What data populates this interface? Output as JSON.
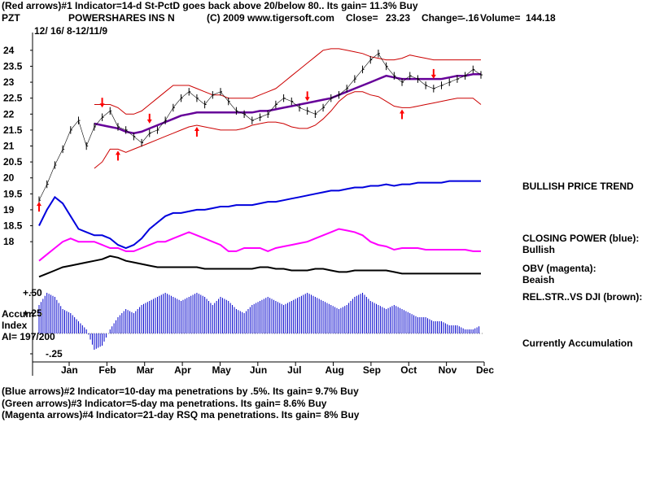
{
  "header": {
    "line1": "(Red arrows)#1 Indicator=14-d St-PctD goes back above 20/below 80.. Its gain= 11.3% Buy",
    "symbol": "PZT",
    "name": "POWERSHARES INS N",
    "copyright": "(C) 2009 www.tigersoft.com",
    "close_label": "Close=",
    "close_value": "23.23",
    "change_label": "Change=",
    "change_value": "-.16",
    "volume_label": "Volume=",
    "volume_value": "144.18",
    "date_range": "12/ 16/ 8-12/11/9"
  },
  "right_labels": {
    "trend": "BULLISH PRICE TREND",
    "closing_power_1": "CLOSING POWER (blue):",
    "closing_power_2": "Bullish",
    "obv_1": "OBV (magenta):",
    "obv_2": "Beaish",
    "relstr": "REL.STR..VS DJI (brown):",
    "accum": "Currently Accumulation"
  },
  "accum_panel": {
    "title_1": "Accum",
    "title_2": "Index",
    "ai": "AI= 197/200",
    "tick_p50": "+.50",
    "tick_p25": "+.25",
    "tick_m25": "-.25"
  },
  "footer": {
    "line2": "(Blue arrows)#2 Indicator=10-day ma penetrations by .5%. Its gain= 9.7% Buy",
    "line3": "(Green arrows)#3 Indicator=5-day ma penetrations. Its gain= 8.6% Buy",
    "line4": "(Magenta arrows)#4 Indicator=21-day RSQ ma penetrations. Its gain= 8% Buy"
  },
  "colors": {
    "price": "#000000",
    "bands": "#cc0000",
    "ma": "#660099",
    "closing_power": "#0000dd",
    "obv": "#ff00ff",
    "rel_str": "#000000",
    "accum_bars": "#0000cc",
    "arrows": "#ff0000"
  },
  "chart_data": {
    "type": "line",
    "y_ticks": [
      "24",
      "23.5",
      "23",
      "22.5",
      "22",
      "21.5",
      "21",
      "20.5",
      "20",
      "19.5",
      "19",
      "18.5",
      "18"
    ],
    "ylim": [
      17.8,
      24.2
    ],
    "months": [
      "Jan",
      "Feb",
      "Mar",
      "Apr",
      "May",
      "Jun",
      "Jul",
      "Aug",
      "Sep",
      "Oct",
      "Nov",
      "Dec"
    ],
    "price": [
      19.3,
      19.8,
      20.4,
      20.9,
      21.5,
      21.8,
      21.0,
      21.6,
      21.9,
      22.1,
      21.6,
      21.5,
      21.3,
      21.1,
      21.4,
      21.5,
      21.8,
      22.2,
      22.5,
      22.7,
      22.5,
      22.3,
      22.6,
      22.7,
      22.4,
      22.1,
      22.0,
      21.8,
      21.9,
      22.0,
      22.3,
      22.5,
      22.4,
      22.2,
      22.1,
      22.0,
      22.2,
      22.5,
      22.6,
      22.8,
      23.1,
      23.4,
      23.7,
      23.9,
      23.5,
      23.2,
      23.0,
      23.2,
      23.1,
      22.9,
      22.8,
      22.9,
      23.0,
      23.1,
      23.2,
      23.4,
      23.23
    ],
    "ma": [
      null,
      null,
      null,
      null,
      null,
      null,
      null,
      21.7,
      21.65,
      21.6,
      21.55,
      21.45,
      21.4,
      21.45,
      21.55,
      21.65,
      21.75,
      21.85,
      21.95,
      22.0,
      22.05,
      22.05,
      22.05,
      22.05,
      22.05,
      22.05,
      22.05,
      22.05,
      22.1,
      22.1,
      22.15,
      22.2,
      22.25,
      22.3,
      22.35,
      22.4,
      22.45,
      22.5,
      22.6,
      22.7,
      22.8,
      22.9,
      23.0,
      23.1,
      23.2,
      23.15,
      23.1,
      23.1,
      23.1,
      23.1,
      23.1,
      23.1,
      23.15,
      23.2,
      23.2,
      23.25,
      23.25
    ],
    "band_upper": [
      null,
      null,
      null,
      null,
      null,
      null,
      null,
      22.3,
      22.3,
      22.3,
      22.2,
      22.0,
      22.0,
      22.1,
      22.3,
      22.5,
      22.7,
      22.9,
      22.9,
      22.9,
      22.8,
      22.7,
      22.6,
      22.6,
      22.5,
      22.5,
      22.5,
      22.5,
      22.6,
      22.7,
      22.8,
      23.0,
      23.2,
      23.4,
      23.6,
      23.8,
      24.0,
      24.05,
      24.05,
      24.0,
      23.95,
      23.9,
      23.8,
      23.75,
      23.7,
      23.7,
      23.75,
      23.85,
      23.8,
      23.75,
      23.7,
      23.7,
      23.7,
      23.7,
      23.7,
      23.7,
      23.7
    ],
    "band_lower": [
      null,
      null,
      null,
      null,
      null,
      null,
      null,
      20.3,
      20.5,
      20.9,
      20.9,
      20.8,
      20.9,
      21.0,
      21.1,
      21.2,
      21.3,
      21.4,
      21.5,
      21.6,
      21.65,
      21.6,
      21.55,
      21.5,
      21.5,
      21.5,
      21.55,
      21.65,
      21.7,
      21.75,
      21.75,
      21.7,
      21.6,
      21.55,
      21.55,
      21.65,
      21.85,
      22.1,
      22.4,
      22.6,
      22.7,
      22.7,
      22.6,
      22.55,
      22.4,
      22.25,
      22.2,
      22.2,
      22.25,
      22.3,
      22.35,
      22.4,
      22.45,
      22.5,
      22.5,
      22.5,
      22.3
    ],
    "closing_power": [
      18.5,
      19.0,
      19.4,
      19.2,
      18.8,
      18.4,
      18.3,
      18.2,
      18.2,
      18.1,
      17.9,
      17.8,
      17.9,
      18.1,
      18.4,
      18.6,
      18.8,
      18.9,
      18.9,
      18.95,
      19.0,
      19.0,
      19.05,
      19.1,
      19.1,
      19.15,
      19.15,
      19.15,
      19.2,
      19.25,
      19.25,
      19.3,
      19.35,
      19.4,
      19.45,
      19.5,
      19.55,
      19.6,
      19.6,
      19.65,
      19.7,
      19.7,
      19.75,
      19.75,
      19.8,
      19.75,
      19.8,
      19.8,
      19.85,
      19.85,
      19.85,
      19.85,
      19.9,
      19.9,
      19.9,
      19.9,
      19.9
    ],
    "obv": [
      17.4,
      17.6,
      17.8,
      18.0,
      18.1,
      18.0,
      18.0,
      18.0,
      17.9,
      17.8,
      17.8,
      17.7,
      17.7,
      17.8,
      17.9,
      18.0,
      18.0,
      18.1,
      18.2,
      18.3,
      18.2,
      18.1,
      18.0,
      17.9,
      17.7,
      17.7,
      17.8,
      17.8,
      17.8,
      17.7,
      17.8,
      17.85,
      17.9,
      17.95,
      18.0,
      18.1,
      18.2,
      18.3,
      18.4,
      18.35,
      18.3,
      18.2,
      18.0,
      17.9,
      17.85,
      17.75,
      17.8,
      17.8,
      17.8,
      17.75,
      17.75,
      17.75,
      17.75,
      17.75,
      17.75,
      17.7,
      17.7
    ],
    "rel_str": [
      16.9,
      17.0,
      17.1,
      17.2,
      17.25,
      17.3,
      17.35,
      17.4,
      17.45,
      17.55,
      17.5,
      17.4,
      17.35,
      17.3,
      17.25,
      17.2,
      17.2,
      17.2,
      17.2,
      17.2,
      17.2,
      17.15,
      17.15,
      17.15,
      17.15,
      17.15,
      17.15,
      17.15,
      17.2,
      17.2,
      17.15,
      17.15,
      17.1,
      17.1,
      17.1,
      17.15,
      17.15,
      17.1,
      17.05,
      17.05,
      17.1,
      17.1,
      17.1,
      17.1,
      17.1,
      17.05,
      17.0,
      17.0,
      17.0,
      17.0,
      17.0,
      17.0,
      17.0,
      17.0,
      17.0,
      17.0,
      17.0
    ],
    "accum_index": [
      0.35,
      0.5,
      0.45,
      0.3,
      0.25,
      0.15,
      0.05,
      -0.2,
      -0.15,
      0.05,
      0.2,
      0.3,
      0.25,
      0.35,
      0.4,
      0.45,
      0.5,
      0.45,
      0.4,
      0.45,
      0.5,
      0.45,
      0.35,
      0.45,
      0.4,
      0.3,
      0.25,
      0.35,
      0.4,
      0.45,
      0.4,
      0.35,
      0.4,
      0.45,
      0.5,
      0.45,
      0.4,
      0.35,
      0.3,
      0.35,
      0.45,
      0.5,
      0.4,
      0.35,
      0.3,
      0.35,
      0.3,
      0.25,
      0.2,
      0.2,
      0.15,
      0.15,
      0.1,
      0.1,
      0.05,
      0.05,
      0.1
    ],
    "accum_ylim": [
      -0.3,
      0.55
    ],
    "sell_arrows_x": [
      8,
      14,
      34,
      50,
      69,
      87
    ],
    "buy_arrows_x": [
      10,
      20,
      46,
      61,
      90,
      0
    ]
  }
}
